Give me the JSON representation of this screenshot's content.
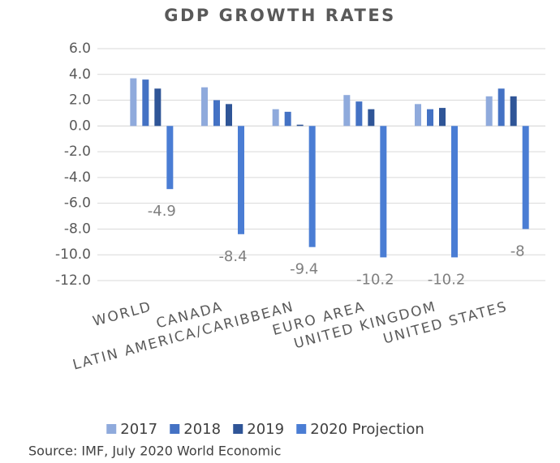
{
  "chart_data": {
    "type": "bar",
    "title": "GDP GROWTH RATES",
    "categories": [
      "WORLD",
      "CANADA",
      "LATIN AMERICA/CARIBBEAN",
      "EURO AREA",
      "UNITED KINGDOM",
      "UNITED STATES"
    ],
    "series": [
      {
        "name": "2017",
        "color": "#8faadc",
        "values": [
          3.7,
          3.0,
          1.3,
          2.4,
          1.7,
          2.3
        ]
      },
      {
        "name": "2018",
        "color": "#4472c4",
        "values": [
          3.6,
          2.0,
          1.1,
          1.9,
          1.3,
          2.9
        ]
      },
      {
        "name": "2019",
        "color": "#2f5597",
        "values": [
          2.9,
          1.7,
          0.1,
          1.3,
          1.4,
          2.3
        ]
      },
      {
        "name": "2020 Projection",
        "color": "#4a7dd4",
        "values": [
          -4.9,
          -8.4,
          -9.4,
          -10.2,
          -10.2,
          -8.0
        ],
        "data_labels": true
      }
    ],
    "ylim": [
      -12,
      6
    ],
    "yticks": [
      {
        "value": 6,
        "label": "6.0"
      },
      {
        "value": 4,
        "label": "4.0"
      },
      {
        "value": 2,
        "label": "2.0"
      },
      {
        "value": 0,
        "label": "0.0"
      },
      {
        "value": -2,
        "label": "-2.0"
      },
      {
        "value": -4,
        "label": "-4.0"
      },
      {
        "value": -6,
        "label": "-6.0"
      },
      {
        "value": -8,
        "label": "-8.0"
      },
      {
        "value": -10,
        "label": "-10.0"
      },
      {
        "value": -12,
        "label": "-12.0"
      }
    ],
    "grid": true,
    "source": "Source: IMF,  July 2020 World Economic"
  }
}
